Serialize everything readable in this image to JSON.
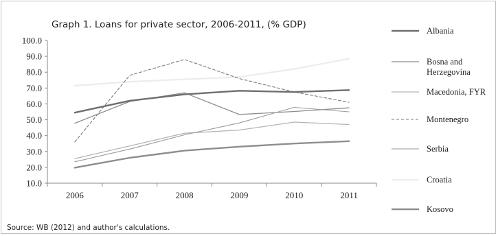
{
  "chart_data": {
    "type": "line",
    "title": "Graph 1. Loans for private sector, 2006-2011, (% GDP)",
    "xlabel": "",
    "ylabel": "",
    "categories": [
      "2006",
      "2007",
      "2008",
      "2009",
      "2010",
      "2011"
    ],
    "ylim": [
      10,
      100
    ],
    "yticks": [
      "10.0",
      "20.0",
      "30.0",
      "40.0",
      "50.0",
      "60.0",
      "70.0",
      "80.0",
      "90.0",
      "100.0"
    ],
    "grid": false,
    "legend_position": "right",
    "series": [
      {
        "name": "Albania",
        "values": [
          54.5,
          62,
          66,
          68.3,
          67.5,
          68.7
        ],
        "color": "#6e6e6e",
        "width": 2.4,
        "dash": ""
      },
      {
        "name": "Bosna and Herzegovina",
        "values": [
          47.8,
          61.5,
          67,
          53.3,
          55.2,
          57.5
        ],
        "color": "#8c8c8c",
        "width": 1.3,
        "dash": ""
      },
      {
        "name": "Macedonia, FYR",
        "values": [
          25.5,
          33.5,
          41.5,
          43.5,
          48.5,
          47
        ],
        "color": "#b4b4b4",
        "width": 1.3,
        "dash": ""
      },
      {
        "name": "Montenegro",
        "values": [
          36,
          78,
          88,
          76,
          67.5,
          61
        ],
        "color": "#7a7a7a",
        "width": 1.1,
        "dash": "4,3"
      },
      {
        "name": "Serbia",
        "values": [
          23.5,
          31.5,
          40.5,
          48,
          57.8,
          55
        ],
        "color": "#9a9a9a",
        "width": 1.1,
        "dash": ""
      },
      {
        "name": "Croatia",
        "values": [
          71.5,
          74,
          75.5,
          77,
          82,
          88.5
        ],
        "color": "#ececec",
        "width": 2.2,
        "dash": ""
      },
      {
        "name": "Kosovo",
        "values": [
          19.8,
          26,
          30.5,
          33,
          35,
          36.5
        ],
        "color": "#8e8e8e",
        "width": 2.4,
        "dash": ""
      }
    ],
    "legend_labels": [
      {
        "lines": [
          "Albania"
        ]
      },
      {
        "lines": [
          "Bosna and",
          "Herzegovina"
        ]
      },
      {
        "lines": [
          "Macedonia, FYR"
        ]
      },
      {
        "lines": [
          "Montenegro"
        ]
      },
      {
        "lines": [
          "Serbia"
        ]
      },
      {
        "lines": [
          "Croatia"
        ]
      },
      {
        "lines": [
          "Kosovo"
        ]
      }
    ],
    "source": "Source: WB (2012)  and author's calculations."
  }
}
